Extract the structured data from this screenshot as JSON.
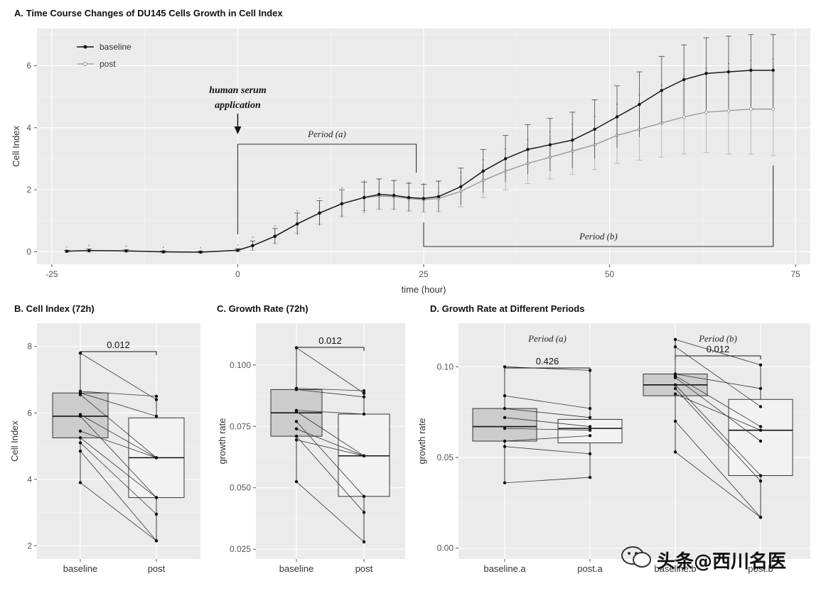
{
  "chart_data": [
    {
      "id": "A",
      "type": "line",
      "title": "A. Time Course Changes of DU145 Cells Growth in Cell Index",
      "xlabel": "time (hour)",
      "ylabel": "Cell Index",
      "xlim": [
        -27,
        77
      ],
      "ylim": [
        -0.4,
        7.2
      ],
      "xticks": [
        -25,
        0,
        25,
        50,
        75
      ],
      "yticks": [
        0,
        2,
        4,
        6
      ],
      "legend": {
        "position": "top-left",
        "entries": [
          "baseline",
          "post"
        ]
      },
      "annotations": {
        "serum_line1": "human serum",
        "serum_line2": "application",
        "serum_x": 0,
        "period_a": "Period (a)",
        "period_a_range": [
          0,
          24
        ],
        "period_b": "Period (b)",
        "period_b_range": [
          25,
          72
        ]
      },
      "series": [
        {
          "name": "baseline",
          "x": [
            -23,
            -20,
            -15,
            -10,
            -5,
            0,
            2,
            5,
            8,
            11,
            14,
            17,
            19,
            21,
            23,
            25,
            27,
            30,
            33,
            36,
            39,
            42,
            45,
            48,
            51,
            54,
            57,
            60,
            63,
            66,
            69,
            72
          ],
          "y": [
            0.02,
            0.04,
            0.03,
            0.0,
            -0.01,
            0.05,
            0.2,
            0.5,
            0.9,
            1.25,
            1.55,
            1.75,
            1.85,
            1.82,
            1.75,
            1.72,
            1.78,
            2.1,
            2.6,
            3.0,
            3.3,
            3.45,
            3.6,
            3.95,
            4.35,
            4.75,
            5.2,
            5.55,
            5.75,
            5.8,
            5.85,
            5.85
          ],
          "err": [
            0.03,
            0.05,
            0.04,
            0.03,
            0.03,
            0.05,
            0.15,
            0.25,
            0.35,
            0.4,
            0.45,
            0.5,
            0.5,
            0.48,
            0.46,
            0.45,
            0.5,
            0.6,
            0.7,
            0.75,
            0.8,
            0.85,
            0.9,
            0.95,
            1.0,
            1.05,
            1.1,
            1.12,
            1.15,
            1.15,
            1.15,
            1.15
          ]
        },
        {
          "name": "post",
          "x": [
            -23,
            -20,
            -15,
            -10,
            -5,
            0,
            2,
            5,
            8,
            11,
            14,
            17,
            19,
            21,
            23,
            25,
            27,
            30,
            33,
            36,
            39,
            42,
            45,
            48,
            51,
            54,
            57,
            60,
            63,
            66,
            69,
            72
          ],
          "y": [
            0.02,
            0.04,
            0.03,
            0.0,
            -0.01,
            0.05,
            0.2,
            0.5,
            0.9,
            1.25,
            1.55,
            1.75,
            1.8,
            1.78,
            1.72,
            1.68,
            1.72,
            1.95,
            2.3,
            2.6,
            2.85,
            3.05,
            3.25,
            3.45,
            3.75,
            3.95,
            4.15,
            4.35,
            4.5,
            4.55,
            4.6,
            4.6
          ],
          "err": [
            0.03,
            0.05,
            0.04,
            0.03,
            0.03,
            0.05,
            0.15,
            0.22,
            0.3,
            0.36,
            0.4,
            0.42,
            0.42,
            0.4,
            0.4,
            0.4,
            0.42,
            0.5,
            0.55,
            0.6,
            0.65,
            0.7,
            0.75,
            0.8,
            0.9,
            1.0,
            1.1,
            1.2,
            1.3,
            1.4,
            1.45,
            1.5
          ]
        }
      ]
    },
    {
      "id": "B",
      "type": "box",
      "title": "B. Cell Index (72h)",
      "xlabel": "",
      "ylabel": "Cell Index",
      "categories": [
        "baseline",
        "post"
      ],
      "ylim": [
        1.6,
        8.7
      ],
      "yticks": [
        2,
        4,
        6,
        8
      ],
      "boxes": [
        {
          "category": "baseline",
          "q1": 5.25,
          "median": 5.9,
          "q3": 6.6,
          "min": 3.9,
          "max": 7.8
        },
        {
          "category": "post",
          "q1": 3.45,
          "median": 4.65,
          "q3": 5.85,
          "min": 2.15,
          "max": 6.5
        }
      ],
      "pairs": [
        [
          7.8,
          6.4
        ],
        [
          6.65,
          6.5
        ],
        [
          6.6,
          5.9
        ],
        [
          6.55,
          4.65
        ],
        [
          5.95,
          4.65
        ],
        [
          5.9,
          3.45
        ],
        [
          5.45,
          4.65
        ],
        [
          5.25,
          3.45
        ],
        [
          5.1,
          2.95
        ],
        [
          4.85,
          2.15
        ],
        [
          3.9,
          2.15
        ]
      ],
      "pvalue": "0.012"
    },
    {
      "id": "C",
      "type": "box",
      "title": "C. Growth Rate (72h)",
      "xlabel": "",
      "ylabel": "growth rate",
      "categories": [
        "baseline",
        "post"
      ],
      "ylim": [
        0.021,
        0.117
      ],
      "yticks": [
        0.025,
        0.05,
        0.075,
        0.1
      ],
      "tick_labels": [
        "0.025",
        "0.050",
        "0.075",
        "0.100"
      ],
      "boxes": [
        {
          "category": "baseline",
          "q1": 0.071,
          "median": 0.0805,
          "q3": 0.09,
          "min": 0.0525,
          "max": 0.107
        },
        {
          "category": "post",
          "q1": 0.0465,
          "median": 0.063,
          "q3": 0.08,
          "min": 0.028,
          "max": 0.0895
        }
      ],
      "pairs": [
        [
          0.107,
          0.0885
        ],
        [
          0.0905,
          0.0895
        ],
        [
          0.09,
          0.087
        ],
        [
          0.0815,
          0.08
        ],
        [
          0.081,
          0.063
        ],
        [
          0.077,
          0.0465
        ],
        [
          0.074,
          0.063
        ],
        [
          0.071,
          0.04
        ],
        [
          0.0695,
          0.063
        ],
        [
          0.0525,
          0.028
        ]
      ],
      "pvalue": "0.012"
    },
    {
      "id": "D",
      "type": "box",
      "title": "D. Growth Rate at Different Periods",
      "xlabel": "",
      "ylabel": "growth rate",
      "categories": [
        "baseline.a",
        "post.a",
        "baseline.b",
        "post.b"
      ],
      "ylim": [
        -0.006,
        0.124
      ],
      "yticks": [
        0.0,
        0.05,
        0.1
      ],
      "tick_labels": [
        "0.00",
        "0.05",
        "0.10"
      ],
      "boxes": [
        {
          "category": "baseline.a",
          "q1": 0.059,
          "median": 0.067,
          "q3": 0.077,
          "min": 0.036,
          "max": 0.1
        },
        {
          "category": "post.a",
          "q1": 0.058,
          "median": 0.066,
          "q3": 0.071,
          "min": 0.039,
          "max": 0.098
        },
        {
          "category": "baseline.b",
          "q1": 0.084,
          "median": 0.09,
          "q3": 0.096,
          "min": 0.053,
          "max": 0.115
        },
        {
          "category": "post.b",
          "q1": 0.04,
          "median": 0.065,
          "q3": 0.082,
          "min": 0.017,
          "max": 0.101
        }
      ],
      "pairs_a": [
        [
          0.1,
          0.098
        ],
        [
          0.084,
          0.077
        ],
        [
          0.077,
          0.072
        ],
        [
          0.072,
          0.067
        ],
        [
          0.066,
          0.065
        ],
        [
          0.059,
          0.062
        ],
        [
          0.056,
          0.052
        ],
        [
          0.036,
          0.039
        ]
      ],
      "pairs_b": [
        [
          0.115,
          0.101
        ],
        [
          0.111,
          0.078
        ],
        [
          0.096,
          0.088
        ],
        [
          0.095,
          0.067
        ],
        [
          0.094,
          0.059
        ],
        [
          0.09,
          0.04
        ],
        [
          0.088,
          0.037
        ],
        [
          0.085,
          0.065
        ],
        [
          0.07,
          0.017
        ],
        [
          0.053,
          0.017
        ]
      ],
      "pvalues": [
        {
          "label": "Period (a)",
          "value": "0.426"
        },
        {
          "label": "Period (b)",
          "value": "0.012"
        }
      ]
    }
  ],
  "colors": {
    "panel_bg": "#ebebeb",
    "grid": "#ffffff",
    "baseline_line": "#1a1a1a",
    "post_line": "#9a9a9a",
    "box_baseline": "#cccccc",
    "box_post": "#f2f2f2"
  },
  "watermark": "头条@西川名医"
}
